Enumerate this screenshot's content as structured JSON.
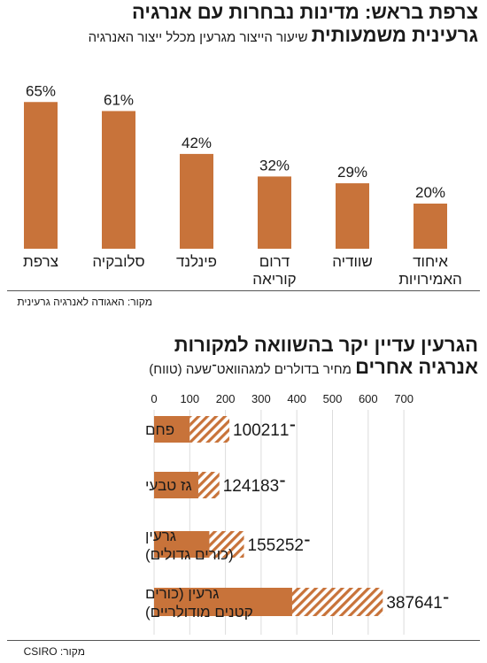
{
  "chart1": {
    "title": "צרפת בראש: מדינות נבחרות עם אנרגיה",
    "title_line2": "גרעינית משמעותית",
    "subtitle": "שיעור הייצור מגרעין מכלל ייצור האנרגיה",
    "source": "מקור: האגודה לאנרגיה גרעינית",
    "bar_color": "#c8733a"
  },
  "chart2": {
    "title": "הגרעין עדיין יקר בהשוואה למקורות",
    "title_line2": "אנרגיה אחרים",
    "subtitle": "מחיר בדולרים למגהוואט־שעה (טווח)",
    "source": "מקור: CSIRO",
    "bar_color": "#c8733a"
  },
  "chart_data": [
    {
      "type": "bar",
      "categories": [
        "צרפת",
        "סלובקיה",
        "פינלנד",
        "דרום קוריאה",
        "שוודיה",
        "איחוד האמירויות"
      ],
      "category_lines": [
        [
          "צרפת"
        ],
        [
          "סלובקיה"
        ],
        [
          "פינלנד"
        ],
        [
          "דרום",
          "קוריאה"
        ],
        [
          "שוודיה"
        ],
        [
          "איחוד",
          "האמירויות"
        ]
      ],
      "values": [
        65,
        61,
        42,
        32,
        29,
        20
      ],
      "value_labels": [
        "65%",
        "61%",
        "42%",
        "32%",
        "29%",
        "20%"
      ],
      "ylim": [
        0,
        70
      ],
      "grid": false
    },
    {
      "type": "bar",
      "orientation": "horizontal",
      "categories": [
        "פחם",
        "גז טבעי",
        "גרעין (כורים גדולים)",
        "גרעין (כורים קטנים מודולריים)"
      ],
      "category_lines": [
        [
          "פחם"
        ],
        [
          "גז טבעי"
        ],
        [
          "גרעין",
          "(כורים גדולים)"
        ],
        [
          "גרעין (כורים",
          "קטנים מודולריים)"
        ]
      ],
      "series": [
        {
          "values": [
            100,
            124,
            155,
            387
          ]
        },
        {
          "values": [
            211,
            183,
            252,
            641
          ]
        }
      ],
      "range_labels": [
        "100־211",
        "124־183",
        "155־252",
        "387־641"
      ],
      "x_ticks": [
        "0",
        "100",
        "200",
        "300",
        "400",
        "500",
        "600",
        "700"
      ],
      "x_tick_values": [
        0,
        100,
        200,
        300,
        400,
        500,
        600,
        700
      ],
      "xlim": [
        0,
        700
      ],
      "grid": true
    }
  ]
}
